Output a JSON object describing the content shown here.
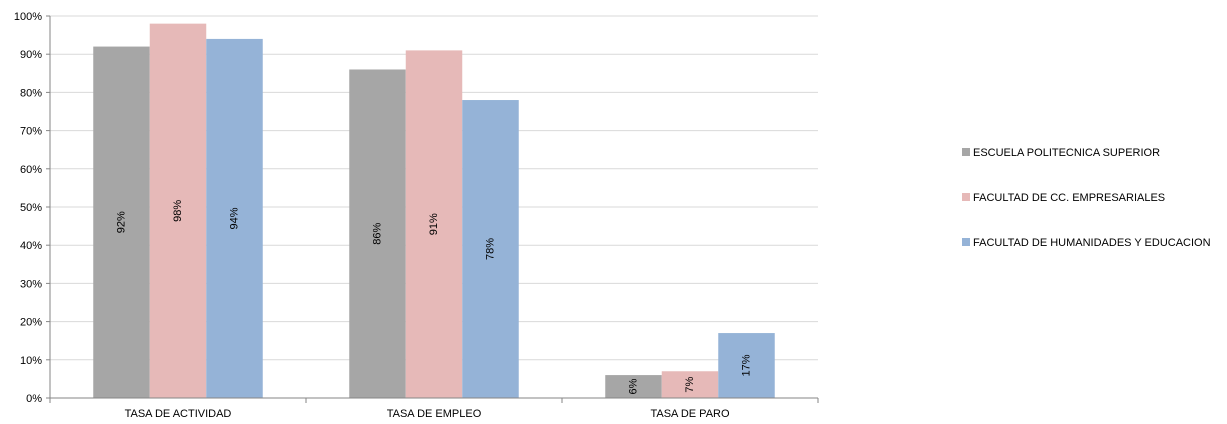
{
  "chart_data": {
    "type": "bar",
    "categories": [
      "TASA DE ACTIVIDAD",
      "TASA DE EMPLEO",
      "TASA DE PARO"
    ],
    "series": [
      {
        "name": "ESCUELA POLITECNICA SUPERIOR",
        "values": [
          92,
          86,
          6
        ],
        "labels": [
          "92%",
          "86%",
          "6%"
        ],
        "color": "#a6a6a6"
      },
      {
        "name": "FACULTAD DE CC. EMPRESARIALES",
        "values": [
          98,
          91,
          7
        ],
        "labels": [
          "98%",
          "91%",
          "7%"
        ],
        "color": "#e6b9b8"
      },
      {
        "name": "FACULTAD DE HUMANIDADES Y EDUCACION",
        "values": [
          94,
          78,
          17
        ],
        "labels": [
          "94%",
          "78%",
          "17%"
        ],
        "color": "#95b3d7"
      }
    ],
    "yticks": [
      "0%",
      "10%",
      "20%",
      "30%",
      "40%",
      "50%",
      "60%",
      "70%",
      "80%",
      "90%",
      "100%"
    ],
    "ylim": [
      0,
      100
    ],
    "grid": true,
    "legend_position": "right",
    "title": "",
    "xlabel": "",
    "ylabel": ""
  }
}
